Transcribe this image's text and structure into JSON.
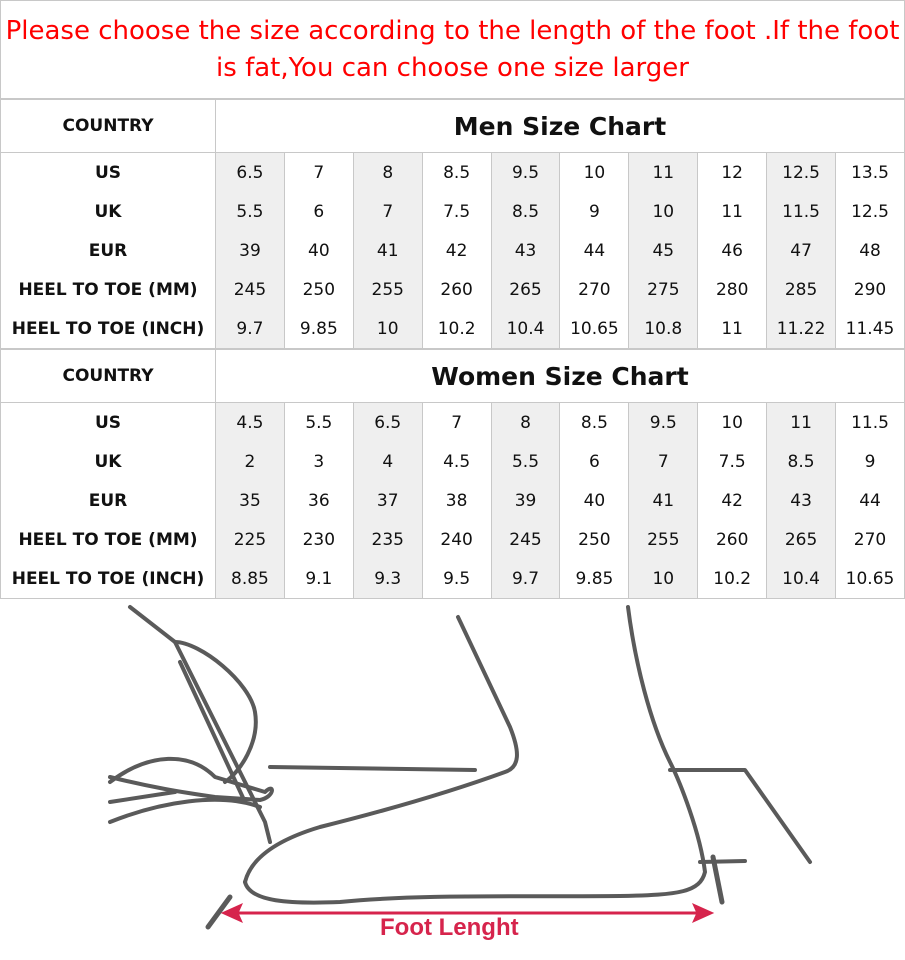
{
  "notice": "Please choose the size according to the length of the foot .If the foot is fat,You can choose one size larger",
  "colors": {
    "notice": "#ff0000",
    "shaded_column": "#efefef",
    "arrow": "#d6244c",
    "drawing": "#555555"
  },
  "men": {
    "country_label": "COUNTRY",
    "title": "Men Size Chart",
    "rows": [
      {
        "label": "US",
        "values": [
          "6.5",
          "7",
          "8",
          "8.5",
          "9.5",
          "10",
          "11",
          "12",
          "12.5",
          "13.5"
        ]
      },
      {
        "label": "UK",
        "values": [
          "5.5",
          "6",
          "7",
          "7.5",
          "8.5",
          "9",
          "10",
          "11",
          "11.5",
          "12.5"
        ]
      },
      {
        "label": "EUR",
        "values": [
          "39",
          "40",
          "41",
          "42",
          "43",
          "44",
          "45",
          "46",
          "47",
          "48"
        ]
      },
      {
        "label": "HEEL TO TOE (MM)",
        "values": [
          "245",
          "250",
          "255",
          "260",
          "265",
          "270",
          "275",
          "280",
          "285",
          "290"
        ]
      },
      {
        "label": "HEEL TO TOE (INCH)",
        "values": [
          "9.7",
          "9.85",
          "10",
          "10.2",
          "10.4",
          "10.65",
          "10.8",
          "11",
          "11.22",
          "11.45"
        ]
      }
    ]
  },
  "women": {
    "country_label": "COUNTRY",
    "title": "Women Size Chart",
    "rows": [
      {
        "label": "US",
        "values": [
          "4.5",
          "5.5",
          "6.5",
          "7",
          "8",
          "8.5",
          "9.5",
          "10",
          "11",
          "11.5"
        ]
      },
      {
        "label": "UK",
        "values": [
          "2",
          "3",
          "4",
          "4.5",
          "5.5",
          "6",
          "7",
          "7.5",
          "8.5",
          "9"
        ]
      },
      {
        "label": "EUR",
        "values": [
          "35",
          "36",
          "37",
          "38",
          "39",
          "40",
          "41",
          "42",
          "43",
          "44"
        ]
      },
      {
        "label": "HEEL TO TOE (MM)",
        "values": [
          "225",
          "230",
          "235",
          "240",
          "245",
          "250",
          "255",
          "260",
          "265",
          "270"
        ]
      },
      {
        "label": "HEEL TO TOE (INCH)",
        "values": [
          "8.85",
          "9.1",
          "9.3",
          "9.5",
          "9.7",
          "9.85",
          "10",
          "10.2",
          "10.4",
          "10.65"
        ]
      }
    ]
  },
  "illustration": {
    "label": "Foot Lenght"
  }
}
